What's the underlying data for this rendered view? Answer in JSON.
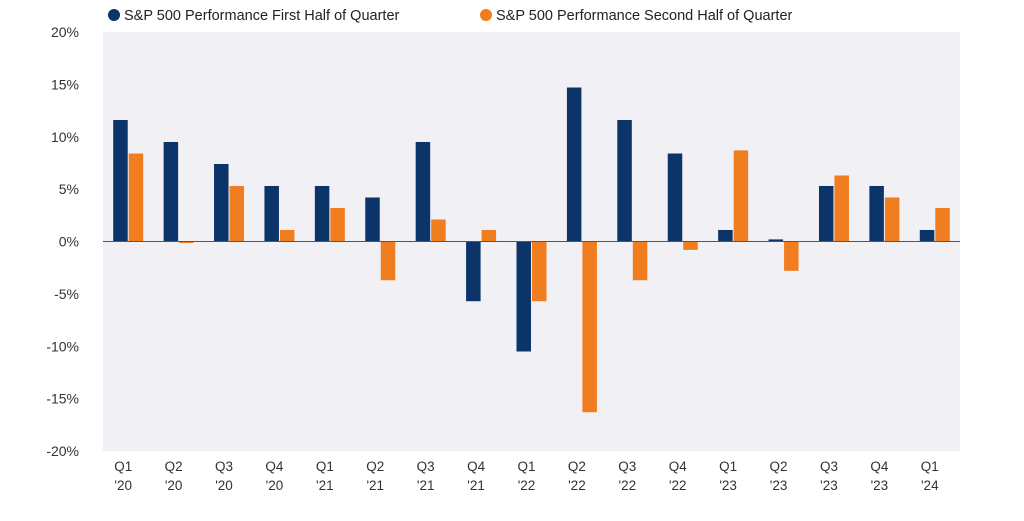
{
  "chart_data": {
    "type": "bar",
    "categories": [
      [
        "Q1",
        "'20"
      ],
      [
        "Q2",
        "'20"
      ],
      [
        "Q3",
        "'20"
      ],
      [
        "Q4",
        "'20"
      ],
      [
        "Q1",
        "'21"
      ],
      [
        "Q2",
        "'21"
      ],
      [
        "Q3",
        "'21"
      ],
      [
        "Q4",
        "'21"
      ],
      [
        "Q1",
        "'22"
      ],
      [
        "Q2",
        "'22"
      ],
      [
        "Q3",
        "'22"
      ],
      [
        "Q4",
        "'22"
      ],
      [
        "Q1",
        "'23"
      ],
      [
        "Q2",
        "'23"
      ],
      [
        "Q3",
        "'23"
      ],
      [
        "Q4",
        "'23"
      ],
      [
        "Q1",
        "'24"
      ]
    ],
    "series": [
      {
        "name": "S&P 500 Performance First Half of Quarter",
        "color": "#0b3468",
        "values": [
          11.6,
          9.5,
          7.4,
          5.3,
          5.3,
          4.2,
          9.5,
          -5.7,
          -10.5,
          14.7,
          11.6,
          8.4,
          1.1,
          0.2,
          5.3,
          5.3,
          1.1
        ]
      },
      {
        "name": "S&P 500 Performance Second Half of Quarter",
        "color": "#f07d1f",
        "values": [
          8.4,
          -0.1,
          5.3,
          1.1,
          3.2,
          -3.7,
          2.1,
          1.1,
          -5.7,
          -16.3,
          -3.7,
          -0.8,
          8.7,
          -2.8,
          6.3,
          4.2,
          3.2
        ]
      }
    ],
    "ylim": [
      -20,
      20
    ],
    "yticks": [
      20,
      15,
      10,
      5,
      0,
      -5,
      -10,
      -15,
      -20
    ],
    "ytick_labels": [
      "20%",
      "15%",
      "10%",
      "5%",
      "0%",
      "-5%",
      "-10%",
      "-15%",
      "-20%"
    ],
    "title": "",
    "xlabel": "",
    "ylabel": "",
    "legend_position": "top-left",
    "grid": false,
    "plot_background": "#f1f0f5"
  }
}
